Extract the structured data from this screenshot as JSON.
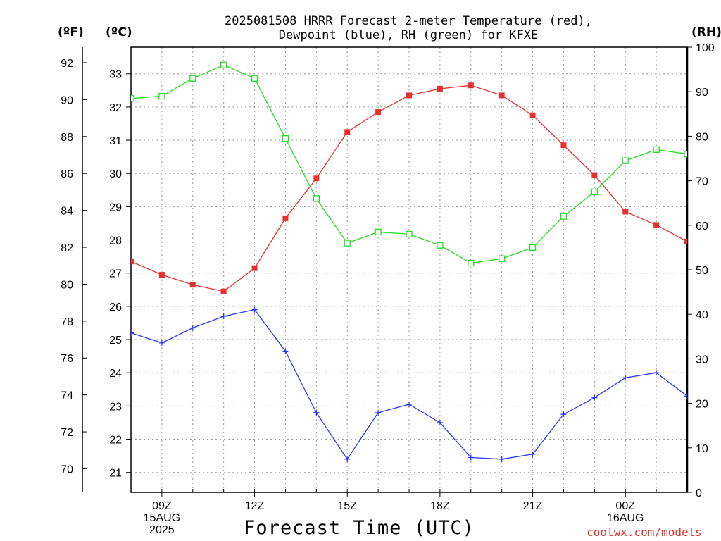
{
  "title": {
    "line1": "2025081508 HRRR Forecast 2-meter Temperature (red),",
    "line2": "Dewpoint (blue), RH (green) for KFXE"
  },
  "units": {
    "fahrenheit": "(ºF)",
    "celsius": "(ºC)",
    "rh": "(RH)"
  },
  "xlabel": "Forecast Time (UTC)",
  "credit": "coolwx.com/models",
  "colors": {
    "temperature": "#e8312f",
    "dewpoint": "#2a3af0",
    "rh": "#22dd22",
    "grid": "#9a9a9a"
  },
  "chart_data": {
    "type": "line",
    "x_ticks": [
      {
        "hour": 9,
        "lines": [
          "09Z",
          "15AUG",
          "2025"
        ]
      },
      {
        "hour": 12,
        "lines": [
          "12Z"
        ]
      },
      {
        "hour": 15,
        "lines": [
          "15Z"
        ]
      },
      {
        "hour": 18,
        "lines": [
          "18Z"
        ]
      },
      {
        "hour": 21,
        "lines": [
          "21Z"
        ]
      },
      {
        "hour": 24,
        "lines": [
          "00Z",
          "16AUG"
        ]
      }
    ],
    "xlim": [
      8,
      26
    ],
    "fahrenheit_ticks": [
      "70",
      "72",
      "74",
      "76",
      "78",
      "80",
      "82",
      "84",
      "86",
      "88",
      "90",
      "92"
    ],
    "celsius_ticks": [
      "21",
      "22",
      "23",
      "24",
      "25",
      "26",
      "27",
      "28",
      "29",
      "30",
      "31",
      "32",
      "33"
    ],
    "rh_ticks": [
      "0",
      "10",
      "20",
      "30",
      "40",
      "50",
      "60",
      "70",
      "80",
      "90",
      "100"
    ],
    "celsius_ylim": [
      20.4,
      33.8
    ],
    "rh_ylim": [
      0,
      100
    ],
    "grid": true,
    "series": [
      {
        "key": "temperature",
        "axis": "celsius",
        "marker": "filled-square",
        "x": [
          8,
          9,
          10,
          11,
          12,
          13,
          14,
          15,
          16,
          17,
          18,
          19,
          20,
          21,
          22,
          23,
          24,
          25,
          26
        ],
        "values": [
          27.35,
          26.95,
          26.65,
          26.45,
          27.15,
          28.65,
          29.85,
          31.25,
          31.85,
          32.35,
          32.55,
          32.65,
          32.35,
          31.75,
          30.85,
          29.95,
          28.85,
          28.45,
          27.95
        ]
      },
      {
        "key": "dewpoint",
        "axis": "celsius",
        "marker": "plus",
        "x": [
          8,
          9,
          10,
          11,
          12,
          13,
          14,
          15,
          16,
          17,
          18,
          19,
          20,
          21,
          22,
          23,
          24,
          25,
          26
        ],
        "values": [
          25.2,
          24.9,
          25.35,
          25.7,
          25.9,
          24.65,
          22.8,
          21.4,
          22.8,
          23.05,
          22.5,
          21.45,
          21.4,
          21.55,
          22.75,
          23.25,
          23.85,
          24.0,
          23.3
        ]
      },
      {
        "key": "rh",
        "axis": "rh",
        "marker": "open-square",
        "x": [
          8,
          9,
          10,
          11,
          12,
          13,
          14,
          15,
          16,
          17,
          18,
          19,
          20,
          21,
          22,
          23,
          24,
          25,
          26
        ],
        "values": [
          88.5,
          89,
          93,
          96,
          93,
          79.5,
          66,
          56,
          58.5,
          58,
          55.5,
          51.5,
          52.5,
          55,
          62,
          67.5,
          74.5,
          77,
          76
        ]
      }
    ]
  }
}
